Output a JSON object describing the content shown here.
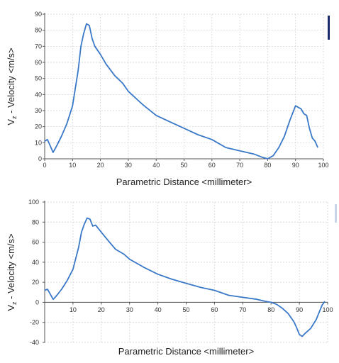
{
  "chart_data": [
    {
      "type": "line",
      "xlabel": "Parametric Distance <millimeter>",
      "ylabel": {
        "main": "V",
        "sub": "z",
        "rest": " - Velocity <m/s>"
      },
      "xlim": [
        0,
        100
      ],
      "ylim": [
        0,
        90
      ],
      "xticks": [
        0,
        10,
        20,
        30,
        40,
        50,
        60,
        70,
        80,
        90,
        100
      ],
      "yticks": [
        0,
        10,
        20,
        30,
        40,
        50,
        60,
        70,
        80,
        90
      ],
      "grid": true,
      "color": "#3a78c8",
      "series": [
        {
          "x": [
            0,
            1,
            2,
            3,
            4,
            6,
            8,
            10,
            12,
            13,
            14,
            15,
            16,
            17,
            18,
            20,
            22,
            25,
            28,
            30,
            35,
            40,
            45,
            50,
            55,
            60,
            65,
            70,
            75,
            78,
            80,
            82,
            84,
            86,
            88,
            90,
            92,
            93,
            94,
            95,
            96,
            97,
            98
          ],
          "y": [
            11,
            12,
            8,
            4,
            7,
            14,
            22,
            33,
            55,
            70,
            78,
            84,
            83,
            75,
            70,
            65,
            59,
            52,
            47,
            42,
            34,
            27,
            23,
            19,
            15,
            12,
            7,
            5,
            3,
            1,
            0,
            2,
            7,
            14,
            24,
            33,
            31,
            28,
            27,
            19,
            13,
            11,
            7
          ]
        }
      ]
    },
    {
      "type": "line",
      "xlabel": "Parametric Distance <millimeter>",
      "ylabel": {
        "main": "V",
        "sub": "z",
        "rest": " - Velocity <m/s>"
      },
      "xlim": [
        0,
        100
      ],
      "ylim": [
        -40,
        100
      ],
      "xticks": [
        10,
        20,
        30,
        40,
        50,
        60,
        70,
        80,
        90,
        100
      ],
      "yticks": [
        100,
        80,
        60,
        40,
        20,
        0,
        -20,
        -40
      ],
      "grid": true,
      "color": "#3a78c8",
      "series": [
        {
          "x": [
            0,
            1,
            2,
            3,
            4,
            6,
            8,
            10,
            12,
            13,
            14,
            15,
            16,
            17,
            18,
            20,
            22,
            25,
            28,
            30,
            35,
            40,
            45,
            50,
            55,
            60,
            65,
            70,
            75,
            78,
            80,
            82,
            84,
            86,
            88,
            89,
            90,
            91,
            92,
            94,
            96,
            97,
            98,
            99
          ],
          "y": [
            12,
            13,
            8,
            3,
            6,
            13,
            22,
            33,
            55,
            70,
            78,
            84,
            83,
            76,
            77,
            70,
            63,
            53,
            48,
            43,
            35,
            28,
            23,
            19,
            15,
            12,
            7,
            5,
            3,
            1,
            0,
            -2,
            -6,
            -11,
            -19,
            -25,
            -32,
            -34,
            -31,
            -26,
            -17,
            -10,
            -3,
            1
          ]
        }
      ]
    }
  ]
}
